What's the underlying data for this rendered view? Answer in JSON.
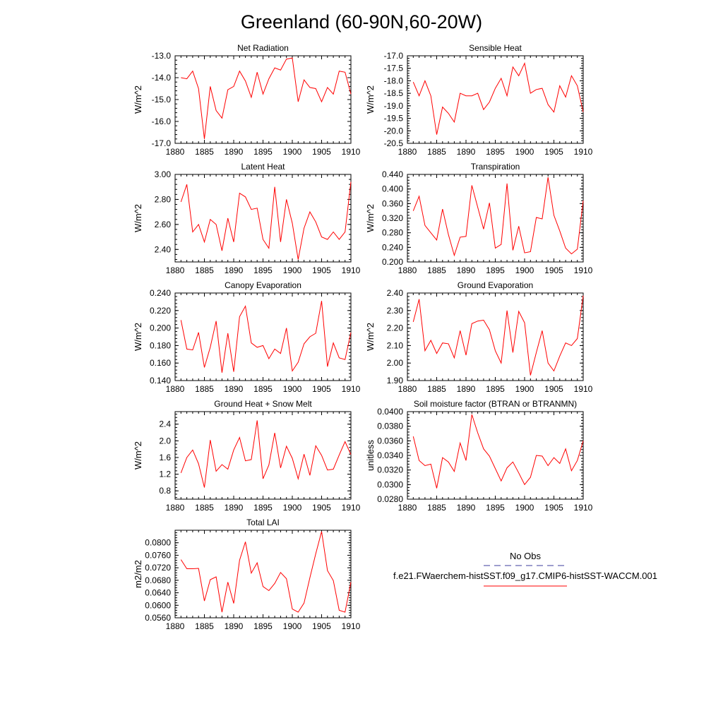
{
  "figure": {
    "title": "Greenland (60-90N,60-20W)"
  },
  "legend": {
    "obs_label": "No Obs",
    "obs_color": "#3b3b9c",
    "model_label": "f.e21.FWaerchem-histSST.f09_g17.CMIP6-histSST-WACCM.001",
    "model_color": "#ff0000"
  },
  "chart_data": [
    {
      "type": "line",
      "title": "Net Radiation",
      "ylabel": "W/m^2",
      "xlim": [
        1880,
        1910
      ],
      "ylim": [
        -17.0,
        -13.0
      ],
      "yticks": [
        -17.0,
        -16.0,
        -15.0,
        -14.0,
        -13.0
      ],
      "ytick_labels": [
        "-17.0",
        "-16.0",
        "-15.0",
        "-14.0",
        "-13.0"
      ],
      "xticks": [
        1880,
        1885,
        1890,
        1895,
        1900,
        1905,
        1910
      ],
      "xtick_labels": [
        "1880",
        "1885",
        "1890",
        "1895",
        "1900",
        "1905",
        "1910"
      ],
      "grid": false,
      "series": [
        {
          "color": "#ff0000",
          "x": [
            1881,
            1882,
            1883,
            1884,
            1885,
            1886,
            1887,
            1888,
            1889,
            1890,
            1891,
            1892,
            1893,
            1894,
            1895,
            1896,
            1897,
            1898,
            1899,
            1900,
            1901,
            1902,
            1903,
            1904,
            1905,
            1906,
            1907,
            1908,
            1909,
            1910
          ],
          "values": [
            -14.0,
            -14.05,
            -13.7,
            -14.5,
            -16.8,
            -14.4,
            -15.5,
            -15.85,
            -14.55,
            -14.4,
            -13.7,
            -14.15,
            -14.9,
            -13.75,
            -14.75,
            -14.05,
            -13.55,
            -13.65,
            -13.15,
            -13.1,
            -15.1,
            -14.1,
            -14.45,
            -14.5,
            -15.1,
            -14.45,
            -14.75,
            -13.7,
            -13.75,
            -14.75
          ]
        }
      ]
    },
    {
      "type": "line",
      "title": "Sensible Heat",
      "ylabel": "W/m^2",
      "xlim": [
        1880,
        1910
      ],
      "ylim": [
        -20.5,
        -17.0
      ],
      "yticks": [
        -20.5,
        -20.0,
        -19.5,
        -19.0,
        -18.5,
        -18.0,
        -17.5,
        -17.0
      ],
      "ytick_labels": [
        "-20.5",
        "-20.0",
        "-19.5",
        "-19.0",
        "-18.5",
        "-18.0",
        "-17.5",
        "-17.0"
      ],
      "xticks": [
        1880,
        1885,
        1890,
        1895,
        1900,
        1905,
        1910
      ],
      "xtick_labels": [
        "1880",
        "1885",
        "1890",
        "1895",
        "1900",
        "1905",
        "1910"
      ],
      "grid": false,
      "series": [
        {
          "color": "#ff0000",
          "x": [
            1881,
            1882,
            1883,
            1884,
            1885,
            1886,
            1887,
            1888,
            1889,
            1890,
            1891,
            1892,
            1893,
            1894,
            1895,
            1896,
            1897,
            1898,
            1899,
            1900,
            1901,
            1902,
            1903,
            1904,
            1905,
            1906,
            1907,
            1908,
            1909,
            1910
          ],
          "values": [
            -18.05,
            -18.6,
            -18.0,
            -18.6,
            -20.15,
            -19.05,
            -19.3,
            -19.65,
            -18.5,
            -18.6,
            -18.6,
            -18.5,
            -19.15,
            -18.85,
            -18.3,
            -17.9,
            -18.6,
            -17.45,
            -17.8,
            -17.3,
            -18.5,
            -18.35,
            -18.3,
            -18.95,
            -19.25,
            -18.2,
            -18.65,
            -17.8,
            -18.2,
            -19.25
          ]
        }
      ]
    },
    {
      "type": "line",
      "title": "Latent Heat",
      "ylabel": "W/m^2",
      "xlim": [
        1880,
        1910
      ],
      "ylim": [
        2.3,
        3.0
      ],
      "yticks": [
        2.4,
        2.6,
        2.8,
        3.0
      ],
      "ytick_labels": [
        "2.40",
        "2.60",
        "2.80",
        "3.00"
      ],
      "xticks": [
        1880,
        1885,
        1890,
        1895,
        1900,
        1905,
        1910
      ],
      "xtick_labels": [
        "1880",
        "1885",
        "1890",
        "1895",
        "1900",
        "1905",
        "1910"
      ],
      "grid": false,
      "series": [
        {
          "color": "#ff0000",
          "x": [
            1881,
            1882,
            1883,
            1884,
            1885,
            1886,
            1887,
            1888,
            1889,
            1890,
            1891,
            1892,
            1893,
            1894,
            1895,
            1896,
            1897,
            1898,
            1899,
            1900,
            1901,
            1902,
            1903,
            1904,
            1905,
            1906,
            1907,
            1908,
            1909,
            1910
          ],
          "values": [
            2.78,
            2.92,
            2.54,
            2.6,
            2.46,
            2.64,
            2.6,
            2.39,
            2.65,
            2.46,
            2.85,
            2.82,
            2.72,
            2.73,
            2.48,
            2.41,
            2.9,
            2.46,
            2.8,
            2.61,
            2.32,
            2.57,
            2.7,
            2.62,
            2.5,
            2.48,
            2.54,
            2.48,
            2.54,
            2.94
          ]
        }
      ]
    },
    {
      "type": "line",
      "title": "Transpiration",
      "ylabel": "W/m^2",
      "xlim": [
        1880,
        1910
      ],
      "ylim": [
        0.2,
        0.44
      ],
      "yticks": [
        0.2,
        0.24,
        0.28,
        0.32,
        0.36,
        0.4,
        0.44
      ],
      "ytick_labels": [
        "0.200",
        "0.240",
        "0.280",
        "0.320",
        "0.360",
        "0.400",
        "0.440"
      ],
      "xticks": [
        1880,
        1885,
        1890,
        1895,
        1900,
        1905,
        1910
      ],
      "xtick_labels": [
        "1880",
        "1885",
        "1890",
        "1895",
        "1900",
        "1905",
        "1910"
      ],
      "grid": false,
      "series": [
        {
          "color": "#ff0000",
          "x": [
            1881,
            1882,
            1883,
            1884,
            1885,
            1886,
            1887,
            1888,
            1889,
            1890,
            1891,
            1892,
            1893,
            1894,
            1895,
            1896,
            1897,
            1898,
            1899,
            1900,
            1901,
            1902,
            1903,
            1904,
            1905,
            1906,
            1907,
            1908,
            1909,
            1910
          ],
          "values": [
            0.34,
            0.38,
            0.3,
            0.28,
            0.26,
            0.345,
            0.275,
            0.218,
            0.268,
            0.27,
            0.41,
            0.35,
            0.29,
            0.362,
            0.238,
            0.248,
            0.415,
            0.232,
            0.298,
            0.225,
            0.228,
            0.322,
            0.318,
            0.432,
            0.328,
            0.285,
            0.238,
            0.222,
            0.235,
            0.368
          ]
        }
      ]
    },
    {
      "type": "line",
      "title": "Canopy Evaporation",
      "ylabel": "W/m^2",
      "xlim": [
        1880,
        1910
      ],
      "ylim": [
        0.14,
        0.24
      ],
      "yticks": [
        0.14,
        0.16,
        0.18,
        0.2,
        0.22,
        0.24
      ],
      "ytick_labels": [
        "0.140",
        "0.160",
        "0.180",
        "0.200",
        "0.220",
        "0.240"
      ],
      "xticks": [
        1880,
        1885,
        1890,
        1895,
        1900,
        1905,
        1910
      ],
      "xtick_labels": [
        "1880",
        "1885",
        "1890",
        "1895",
        "1900",
        "1905",
        "1910"
      ],
      "grid": false,
      "series": [
        {
          "color": "#ff0000",
          "x": [
            1881,
            1882,
            1883,
            1884,
            1885,
            1886,
            1887,
            1888,
            1889,
            1890,
            1891,
            1892,
            1893,
            1894,
            1895,
            1896,
            1897,
            1898,
            1899,
            1900,
            1901,
            1902,
            1903,
            1904,
            1905,
            1906,
            1907,
            1908,
            1909,
            1910
          ],
          "values": [
            0.209,
            0.176,
            0.175,
            0.195,
            0.155,
            0.178,
            0.208,
            0.149,
            0.194,
            0.15,
            0.213,
            0.225,
            0.183,
            0.178,
            0.18,
            0.165,
            0.176,
            0.171,
            0.2,
            0.151,
            0.161,
            0.182,
            0.19,
            0.194,
            0.231,
            0.156,
            0.183,
            0.166,
            0.164,
            0.195
          ]
        }
      ]
    },
    {
      "type": "line",
      "title": "Ground Evaporation",
      "ylabel": "W/m^2",
      "xlim": [
        1880,
        1910
      ],
      "ylim": [
        1.9,
        2.4
      ],
      "yticks": [
        1.9,
        2.0,
        2.1,
        2.2,
        2.3,
        2.4
      ],
      "ytick_labels": [
        "1.90",
        "2.00",
        "2.10",
        "2.20",
        "2.30",
        "2.40"
      ],
      "xticks": [
        1880,
        1885,
        1890,
        1895,
        1900,
        1905,
        1910
      ],
      "xtick_labels": [
        "1880",
        "1885",
        "1890",
        "1895",
        "1900",
        "1905",
        "1910"
      ],
      "grid": false,
      "series": [
        {
          "color": "#ff0000",
          "x": [
            1881,
            1882,
            1883,
            1884,
            1885,
            1886,
            1887,
            1888,
            1889,
            1890,
            1891,
            1892,
            1893,
            1894,
            1895,
            1896,
            1897,
            1898,
            1899,
            1900,
            1901,
            1902,
            1903,
            1904,
            1905,
            1906,
            1907,
            1908,
            1909,
            1910
          ],
          "values": [
            2.235,
            2.365,
            2.07,
            2.13,
            2.055,
            2.115,
            2.11,
            2.03,
            2.185,
            2.045,
            2.225,
            2.24,
            2.245,
            2.19,
            2.07,
            2.0,
            2.3,
            2.06,
            2.295,
            2.23,
            1.93,
            2.06,
            2.185,
            2.0,
            1.955,
            2.04,
            2.115,
            2.1,
            2.14,
            2.385
          ]
        }
      ]
    },
    {
      "type": "line",
      "title": "Ground Heat + Snow Melt",
      "ylabel": "W/m^2",
      "xlim": [
        1880,
        1910
      ],
      "ylim": [
        0.6,
        2.7
      ],
      "yticks": [
        0.8,
        1.2,
        1.6,
        2.0,
        2.4
      ],
      "ytick_labels": [
        "0.8",
        "1.2",
        "1.6",
        "2.0",
        "2.4"
      ],
      "xticks": [
        1880,
        1885,
        1890,
        1895,
        1900,
        1905,
        1910
      ],
      "xtick_labels": [
        "1880",
        "1885",
        "1890",
        "1895",
        "1900",
        "1905",
        "1910"
      ],
      "grid": false,
      "series": [
        {
          "color": "#ff0000",
          "x": [
            1881,
            1882,
            1883,
            1884,
            1885,
            1886,
            1887,
            1888,
            1889,
            1890,
            1891,
            1892,
            1893,
            1894,
            1895,
            1896,
            1897,
            1898,
            1899,
            1900,
            1901,
            1902,
            1903,
            1904,
            1905,
            1906,
            1907,
            1908,
            1909,
            1910
          ],
          "values": [
            1.23,
            1.6,
            1.78,
            1.45,
            0.88,
            2.02,
            1.27,
            1.43,
            1.32,
            1.78,
            2.08,
            1.52,
            1.55,
            2.49,
            1.09,
            1.42,
            2.19,
            1.35,
            1.87,
            1.58,
            1.09,
            1.68,
            1.17,
            1.88,
            1.65,
            1.3,
            1.32,
            1.66,
            1.98,
            1.67
          ]
        }
      ]
    },
    {
      "type": "line",
      "title": "Soil moisture factor (BTRAN or BTRANMN)",
      "ylabel": "unitless",
      "xlim": [
        1880,
        1910
      ],
      "ylim": [
        0.028,
        0.04
      ],
      "yticks": [
        0.028,
        0.03,
        0.032,
        0.034,
        0.036,
        0.038,
        0.04
      ],
      "ytick_labels": [
        "0.0280",
        "0.0300",
        "0.0320",
        "0.0340",
        "0.0360",
        "0.0380",
        "0.0400"
      ],
      "xticks": [
        1880,
        1885,
        1890,
        1895,
        1900,
        1905,
        1910
      ],
      "xtick_labels": [
        "1880",
        "1885",
        "1890",
        "1895",
        "1900",
        "1905",
        "1910"
      ],
      "grid": false,
      "series": [
        {
          "color": "#ff0000",
          "x": [
            1881,
            1882,
            1883,
            1884,
            1885,
            1886,
            1887,
            1888,
            1889,
            1890,
            1891,
            1892,
            1893,
            1894,
            1895,
            1896,
            1897,
            1898,
            1899,
            1900,
            1901,
            1902,
            1903,
            1904,
            1905,
            1906,
            1907,
            1908,
            1909,
            1910
          ],
          "values": [
            0.0366,
            0.0333,
            0.0326,
            0.0328,
            0.0295,
            0.0337,
            0.0331,
            0.0318,
            0.0357,
            0.0333,
            0.0396,
            0.0371,
            0.0349,
            0.0339,
            0.0322,
            0.0305,
            0.0323,
            0.0331,
            0.0316,
            0.03,
            0.031,
            0.034,
            0.0339,
            0.0326,
            0.0337,
            0.0329,
            0.0349,
            0.0319,
            0.0333,
            0.036
          ]
        }
      ]
    },
    {
      "type": "line",
      "title": "Total LAI",
      "ylabel": "m2/m2",
      "xlim": [
        1880,
        1910
      ],
      "ylim": [
        0.056,
        0.084
      ],
      "yticks": [
        0.056,
        0.06,
        0.064,
        0.068,
        0.072,
        0.076,
        0.08
      ],
      "ytick_labels": [
        "0.0560",
        "0.0600",
        "0.0640",
        "0.0680",
        "0.0720",
        "0.0760",
        "0.0800"
      ],
      "xticks": [
        1880,
        1885,
        1890,
        1895,
        1900,
        1905,
        1910
      ],
      "xtick_labels": [
        "1880",
        "1885",
        "1890",
        "1895",
        "1900",
        "1905",
        "1910"
      ],
      "grid": false,
      "series": [
        {
          "color": "#ff0000",
          "x": [
            1881,
            1882,
            1883,
            1884,
            1885,
            1886,
            1887,
            1888,
            1889,
            1890,
            1891,
            1892,
            1893,
            1894,
            1895,
            1896,
            1897,
            1898,
            1899,
            1900,
            1901,
            1902,
            1903,
            1904,
            1905,
            1906,
            1907,
            1908,
            1909,
            1910
          ],
          "values": [
            0.0746,
            0.0717,
            0.0717,
            0.0718,
            0.0614,
            0.0682,
            0.0691,
            0.0578,
            0.0674,
            0.0606,
            0.0744,
            0.0803,
            0.0703,
            0.0736,
            0.066,
            0.0647,
            0.067,
            0.0705,
            0.0685,
            0.0588,
            0.0578,
            0.0607,
            0.0688,
            0.0765,
            0.0836,
            0.0711,
            0.0679,
            0.0584,
            0.0578,
            0.0674
          ]
        }
      ]
    }
  ]
}
